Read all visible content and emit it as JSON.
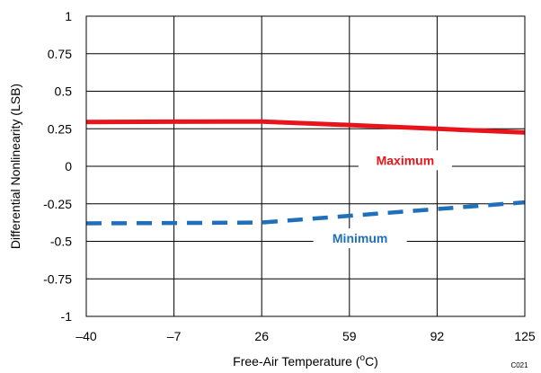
{
  "chart_data": {
    "type": "line",
    "xlabel": "Free-Air Temperature (",
    "xlabel_sup": "o",
    "xlabel_end": "C)",
    "ylabel": "Differential Nonlinearity (LSB)",
    "x_ticks": [
      "–40",
      "–7",
      "26",
      "59",
      "92",
      "125"
    ],
    "x_tick_values": [
      -40,
      -7,
      26,
      59,
      92,
      125
    ],
    "y_ticks": [
      "1",
      "0.75",
      "0.5",
      "0.25",
      "0",
      "-0.25",
      "-0.5",
      "-0.75",
      "-1"
    ],
    "y_tick_values": [
      1,
      0.75,
      0.5,
      0.25,
      0,
      -0.25,
      -0.5,
      -0.75,
      -1
    ],
    "xlim": [
      -40,
      125
    ],
    "ylim": [
      -1,
      1
    ],
    "grid": true,
    "series": [
      {
        "name": "Maximum",
        "color": "#e8141c",
        "style": "solid",
        "x": [
          -40,
          -7,
          26,
          59,
          92,
          125
        ],
        "y": [
          0.295,
          0.297,
          0.298,
          0.275,
          0.25,
          0.225
        ]
      },
      {
        "name": "Minimum",
        "color": "#1f6fba",
        "style": "dashed",
        "x": [
          -40,
          -7,
          26,
          59,
          92,
          125
        ],
        "y": [
          -0.38,
          -0.378,
          -0.375,
          -0.33,
          -0.285,
          -0.24
        ]
      }
    ],
    "annotations": [
      {
        "text": "Maximum",
        "series": "Maximum",
        "x": 80,
        "y": 0.04,
        "color": "#e8141c"
      },
      {
        "text": "Minimum",
        "series": "Minimum",
        "x": 63,
        "y": -0.48,
        "color": "#1f6fba"
      }
    ],
    "code": "C021"
  }
}
